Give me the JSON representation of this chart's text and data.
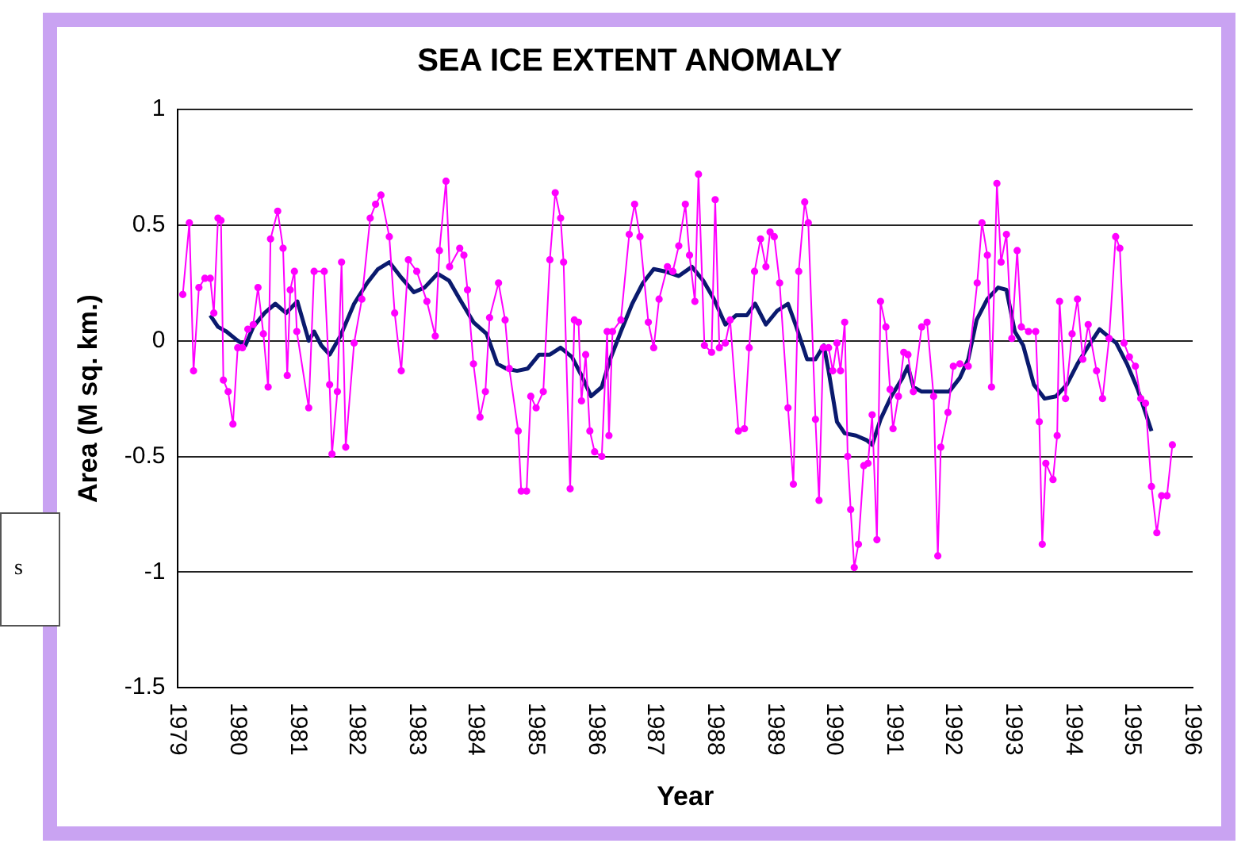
{
  "chart_data": {
    "type": "line",
    "title": "SEA ICE EXTENT ANOMALY",
    "xlabel": "Year",
    "ylabel": "Area (M sq. km.)",
    "annotations": [
      "s"
    ],
    "xlim": [
      1979,
      1996
    ],
    "xticks": [
      1979,
      1980,
      1981,
      1982,
      1983,
      1984,
      1985,
      1986,
      1987,
      1988,
      1989,
      1990,
      1991,
      1992,
      1993,
      1994,
      1995,
      1996
    ],
    "ylim": [
      -1.5,
      1
    ],
    "yticks": [
      -1.5,
      -1,
      -0.5,
      0,
      0.5,
      1
    ],
    "grid": "y",
    "legend": false,
    "series": [
      {
        "color": "#ff00ff",
        "marker": "circle",
        "x": [
          1979.08,
          1979.19,
          1979.26,
          1979.35,
          1979.45,
          1979.54,
          1979.6,
          1979.67,
          1979.72,
          1979.76,
          1979.84,
          1979.92,
          1980.0,
          1980.08,
          1980.17,
          1980.26,
          1980.34,
          1980.43,
          1980.51,
          1980.55,
          1980.67,
          1980.76,
          1980.83,
          1980.88,
          1980.95,
          1980.99,
          1981.19,
          1981.28,
          1981.45,
          1981.54,
          1981.58,
          1981.67,
          1981.74,
          1981.81,
          1981.95,
          1982.08,
          1982.22,
          1982.31,
          1982.4,
          1982.54,
          1982.63,
          1982.74,
          1982.86,
          1983.0,
          1983.17,
          1983.31,
          1983.38,
          1983.49,
          1983.55,
          1983.72,
          1983.79,
          1983.85,
          1983.95,
          1984.06,
          1984.15,
          1984.22,
          1984.37,
          1984.48,
          1984.55,
          1984.7,
          1984.75,
          1984.84,
          1984.91,
          1985.0,
          1985.12,
          1985.23,
          1985.32,
          1985.41,
          1985.46,
          1985.57,
          1985.64,
          1985.71,
          1985.76,
          1985.83,
          1985.9,
          1985.98,
          1986.1,
          1986.19,
          1986.22,
          1986.28,
          1986.42,
          1986.56,
          1986.65,
          1986.74,
          1986.88,
          1986.97,
          1987.06,
          1987.2,
          1987.29,
          1987.39,
          1987.5,
          1987.57,
          1987.66,
          1987.72,
          1987.82,
          1987.94,
          1988.0,
          1988.07,
          1988.17,
          1988.25,
          1988.39,
          1988.49,
          1988.57,
          1988.66,
          1988.76,
          1988.85,
          1988.92,
          1988.99,
          1989.08,
          1989.22,
          1989.31,
          1989.4,
          1989.5,
          1989.56,
          1989.68,
          1989.74,
          1989.81,
          1989.9,
          1989.97,
          1990.04,
          1990.1,
          1990.17,
          1990.22,
          1990.27,
          1990.33,
          1990.4,
          1990.49,
          1990.56,
          1990.63,
          1990.71,
          1990.77,
          1990.86,
          1990.93,
          1990.98,
          1991.07,
          1991.16,
          1991.23,
          1991.32,
          1991.46,
          1991.55,
          1991.66,
          1991.73,
          1991.78,
          1991.9,
          1991.99,
          1992.1,
          1992.24,
          1992.39,
          1992.47,
          1992.56,
          1992.63,
          1992.72,
          1992.79,
          1992.88,
          1992.97,
          1993.06,
          1993.13,
          1993.25,
          1993.37,
          1993.43,
          1993.48,
          1993.54,
          1993.66,
          1993.73,
          1993.77,
          1993.87,
          1993.98,
          1994.07,
          1994.16,
          1994.25,
          1994.39,
          1994.49,
          1994.6,
          1994.71,
          1994.78,
          1994.85,
          1994.94,
          1995.04,
          1995.13,
          1995.21,
          1995.31,
          1995.4,
          1995.48,
          1995.57,
          1995.66
        ],
        "values": [
          0.2,
          0.51,
          -0.13,
          0.23,
          0.27,
          0.27,
          0.12,
          0.53,
          0.52,
          -0.17,
          -0.22,
          -0.36,
          -0.03,
          -0.03,
          0.05,
          0.07,
          0.23,
          0.03,
          -0.2,
          0.44,
          0.56,
          0.4,
          -0.15,
          0.22,
          0.3,
          0.04,
          -0.29,
          0.3,
          0.3,
          -0.19,
          -0.49,
          -0.22,
          0.34,
          -0.46,
          -0.01,
          0.18,
          0.53,
          0.59,
          0.63,
          0.45,
          0.12,
          -0.13,
          0.35,
          0.3,
          0.17,
          0.02,
          0.39,
          0.69,
          0.32,
          0.4,
          0.37,
          0.22,
          -0.1,
          -0.33,
          -0.22,
          0.1,
          0.25,
          0.09,
          -0.12,
          -0.39,
          -0.65,
          -0.65,
          -0.24,
          -0.29,
          -0.22,
          0.35,
          0.64,
          0.53,
          0.34,
          -0.64,
          0.09,
          0.08,
          -0.26,
          -0.06,
          -0.39,
          -0.48,
          -0.5,
          0.04,
          -0.41,
          0.04,
          0.09,
          0.46,
          0.59,
          0.45,
          0.08,
          -0.03,
          0.18,
          0.32,
          0.3,
          0.41,
          0.59,
          0.37,
          0.17,
          0.72,
          -0.02,
          -0.05,
          0.61,
          -0.03,
          -0.01,
          0.09,
          -0.39,
          -0.38,
          -0.03,
          0.3,
          0.44,
          0.32,
          0.47,
          0.45,
          0.25,
          -0.29,
          -0.62,
          0.3,
          0.6,
          0.51,
          -0.34,
          -0.69,
          -0.03,
          -0.03,
          -0.13,
          -0.01,
          -0.13,
          0.08,
          -0.5,
          -0.73,
          -0.98,
          -0.88,
          -0.54,
          -0.53,
          -0.32,
          -0.86,
          0.17,
          0.06,
          -0.21,
          -0.38,
          -0.24,
          -0.05,
          -0.06,
          -0.22,
          0.06,
          0.08,
          -0.24,
          -0.93,
          -0.46,
          -0.31,
          -0.11,
          -0.1,
          -0.11,
          0.25,
          0.51,
          0.37,
          -0.2,
          0.68,
          0.34,
          0.46,
          0.01,
          0.39,
          0.06,
          0.04,
          0.04,
          -0.35,
          -0.88,
          -0.53,
          -0.6,
          -0.41,
          0.17,
          -0.25,
          0.03,
          0.18,
          -0.08,
          0.07,
          -0.13,
          -0.25,
          0.01,
          0.45,
          0.4,
          -0.01,
          -0.07,
          -0.11,
          -0.25,
          -0.27,
          -0.63,
          -0.83,
          -0.67,
          -0.67,
          -0.45
        ]
      },
      {
        "color": "#0a1a6e",
        "marker": "none",
        "x": [
          1979.54,
          1979.67,
          1979.81,
          1980.0,
          1980.13,
          1980.26,
          1980.45,
          1980.63,
          1980.81,
          1981.0,
          1981.19,
          1981.28,
          1981.4,
          1981.54,
          1981.72,
          1981.95,
          1982.17,
          1982.35,
          1982.54,
          1982.72,
          1982.95,
          1983.13,
          1983.35,
          1983.54,
          1983.72,
          1983.95,
          1984.17,
          1984.35,
          1984.5,
          1984.68,
          1984.86,
          1985.05,
          1985.23,
          1985.41,
          1985.6,
          1985.78,
          1985.92,
          1986.1,
          1986.24,
          1986.42,
          1986.61,
          1986.79,
          1986.97,
          1987.16,
          1987.39,
          1987.61,
          1987.8,
          1987.98,
          1988.17,
          1988.35,
          1988.53,
          1988.67,
          1988.85,
          1989.04,
          1989.22,
          1989.36,
          1989.54,
          1989.68,
          1989.82,
          1989.9,
          1990.04,
          1990.17,
          1990.36,
          1990.54,
          1990.63,
          1990.77,
          1990.95,
          1991.14,
          1991.23,
          1991.32,
          1991.46,
          1991.73,
          1991.92,
          1992.1,
          1992.24,
          1992.38,
          1992.56,
          1992.74,
          1992.88,
          1993.02,
          1993.16,
          1993.34,
          1993.52,
          1993.71,
          1993.89,
          1994.07,
          1994.26,
          1994.44,
          1994.58,
          1994.72,
          1994.9,
          1995.08,
          1995.31
        ],
        "values": [
          0.11,
          0.06,
          0.04,
          0.0,
          -0.02,
          0.06,
          0.12,
          0.16,
          0.12,
          0.17,
          0.0,
          0.04,
          -0.02,
          -0.06,
          0.02,
          0.16,
          0.25,
          0.31,
          0.34,
          0.28,
          0.21,
          0.23,
          0.29,
          0.26,
          0.18,
          0.08,
          0.03,
          -0.1,
          -0.12,
          -0.13,
          -0.12,
          -0.06,
          -0.06,
          -0.03,
          -0.07,
          -0.16,
          -0.24,
          -0.2,
          -0.08,
          0.04,
          0.16,
          0.25,
          0.31,
          0.3,
          0.28,
          0.32,
          0.26,
          0.18,
          0.07,
          0.11,
          0.11,
          0.16,
          0.07,
          0.13,
          0.16,
          0.06,
          -0.08,
          -0.08,
          -0.02,
          -0.13,
          -0.35,
          -0.4,
          -0.41,
          -0.43,
          -0.45,
          -0.34,
          -0.24,
          -0.16,
          -0.11,
          -0.2,
          -0.22,
          -0.22,
          -0.22,
          -0.16,
          -0.08,
          0.09,
          0.18,
          0.23,
          0.22,
          0.04,
          -0.02,
          -0.19,
          -0.25,
          -0.24,
          -0.19,
          -0.1,
          -0.02,
          0.05,
          0.02,
          -0.01,
          -0.1,
          -0.21,
          -0.39
        ]
      }
    ]
  }
}
